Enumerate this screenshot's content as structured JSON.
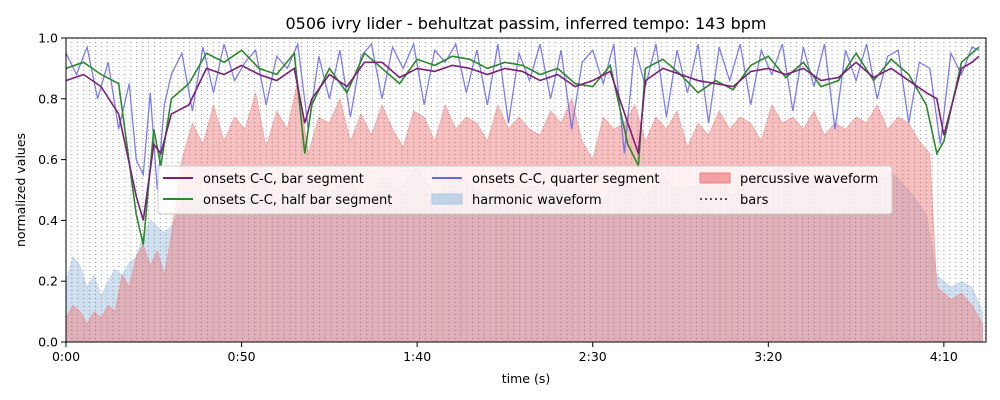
{
  "chart_data": {
    "type": "line",
    "title": "0506 ivry lider - behultzat passim, inferred tempo: 143 bpm",
    "xlabel": "time (s)",
    "ylabel": "normalized values",
    "xlim": [
      0,
      262
    ],
    "ylim": [
      0.0,
      1.0
    ],
    "xticks": [
      0,
      50,
      100,
      150,
      200,
      250
    ],
    "xtick_labels": [
      "0:00",
      "0:50",
      "1:40",
      "2:30",
      "3:20",
      "4:10"
    ],
    "yticks": [
      0.0,
      0.2,
      0.4,
      0.6,
      0.8,
      1.0
    ],
    "ytick_labels": [
      "0.0",
      "0.2",
      "0.4",
      "0.6",
      "0.8",
      "1.0"
    ],
    "legend_position": "center",
    "legend": [
      {
        "label": "onsets C-C, bar segment",
        "color": "#7b1f7b",
        "kind": "line"
      },
      {
        "label": "onsets C-C, half bar segment",
        "color": "#2a8a2a",
        "kind": "line"
      },
      {
        "label": "onsets C-C, quarter segment",
        "color": "#6666ee",
        "kind": "line"
      },
      {
        "label": "harmonic waveform",
        "color": "#a9c7e3",
        "kind": "patch"
      },
      {
        "label": "percussive waveform",
        "color": "#f08080",
        "kind": "patch"
      },
      {
        "label": "bars",
        "color": "#555555",
        "kind": "dotted"
      }
    ],
    "bar_line_period_s": 1.678,
    "series": [
      {
        "name": "onsets C-C, bar segment",
        "color": "#7b1f7b",
        "x": [
          0,
          5,
          10,
          15,
          20,
          22,
          25,
          27,
          30,
          35,
          40,
          45,
          50,
          55,
          60,
          65,
          68,
          70,
          75,
          80,
          85,
          90,
          95,
          100,
          105,
          110,
          115,
          120,
          125,
          130,
          135,
          140,
          145,
          150,
          155,
          160,
          163,
          165,
          170,
          175,
          180,
          185,
          190,
          195,
          200,
          205,
          210,
          215,
          220,
          225,
          230,
          235,
          240,
          245,
          248,
          250,
          255,
          258,
          260
        ],
        "values": [
          0.86,
          0.88,
          0.84,
          0.75,
          0.48,
          0.4,
          0.65,
          0.62,
          0.75,
          0.78,
          0.9,
          0.88,
          0.91,
          0.88,
          0.86,
          0.9,
          0.72,
          0.8,
          0.88,
          0.84,
          0.92,
          0.92,
          0.87,
          0.9,
          0.89,
          0.91,
          0.9,
          0.88,
          0.9,
          0.89,
          0.86,
          0.88,
          0.84,
          0.86,
          0.89,
          0.72,
          0.62,
          0.86,
          0.9,
          0.88,
          0.86,
          0.85,
          0.84,
          0.89,
          0.9,
          0.88,
          0.9,
          0.86,
          0.87,
          0.92,
          0.87,
          0.9,
          0.86,
          0.82,
          0.8,
          0.68,
          0.9,
          0.92,
          0.94
        ]
      },
      {
        "name": "onsets C-C, half bar segment",
        "color": "#2a8a2a",
        "x": [
          0,
          5,
          10,
          15,
          20,
          22,
          25,
          27,
          30,
          35,
          40,
          45,
          50,
          55,
          60,
          65,
          68,
          70,
          75,
          80,
          85,
          90,
          95,
          100,
          105,
          110,
          115,
          120,
          125,
          130,
          135,
          140,
          145,
          150,
          155,
          160,
          163,
          165,
          170,
          175,
          180,
          185,
          190,
          195,
          200,
          205,
          210,
          215,
          220,
          225,
          230,
          235,
          240,
          245,
          248,
          250,
          255,
          258,
          260
        ],
        "values": [
          0.9,
          0.92,
          0.88,
          0.85,
          0.42,
          0.32,
          0.7,
          0.58,
          0.8,
          0.85,
          0.95,
          0.92,
          0.96,
          0.9,
          0.88,
          0.95,
          0.62,
          0.78,
          0.9,
          0.82,
          0.95,
          0.9,
          0.85,
          0.93,
          0.91,
          0.94,
          0.93,
          0.9,
          0.92,
          0.91,
          0.88,
          0.9,
          0.85,
          0.84,
          0.91,
          0.65,
          0.58,
          0.9,
          0.93,
          0.88,
          0.82,
          0.86,
          0.83,
          0.91,
          0.94,
          0.87,
          0.92,
          0.84,
          0.86,
          0.95,
          0.86,
          0.93,
          0.88,
          0.78,
          0.62,
          0.66,
          0.92,
          0.95,
          0.97
        ]
      },
      {
        "name": "onsets C-C, quarter segment",
        "color": "#6666ee",
        "x": [
          0,
          3,
          6,
          9,
          12,
          15,
          18,
          20,
          22,
          24,
          26,
          28,
          30,
          33,
          36,
          39,
          42,
          45,
          48,
          51,
          54,
          57,
          60,
          63,
          66,
          69,
          72,
          75,
          78,
          81,
          84,
          87,
          90,
          93,
          96,
          99,
          102,
          105,
          108,
          111,
          114,
          117,
          120,
          123,
          126,
          129,
          132,
          135,
          138,
          141,
          144,
          147,
          150,
          153,
          156,
          159,
          162,
          165,
          168,
          171,
          174,
          177,
          180,
          183,
          186,
          189,
          192,
          195,
          198,
          201,
          204,
          207,
          210,
          213,
          216,
          219,
          222,
          225,
          228,
          231,
          234,
          237,
          240,
          243,
          246,
          249,
          252,
          255,
          258,
          260
        ],
        "values": [
          0.95,
          0.88,
          0.97,
          0.8,
          0.92,
          0.7,
          0.85,
          0.6,
          0.55,
          0.82,
          0.5,
          0.78,
          0.88,
          0.95,
          0.76,
          0.97,
          0.82,
          0.98,
          0.86,
          0.92,
          0.96,
          0.78,
          0.94,
          0.9,
          0.98,
          0.7,
          0.94,
          0.8,
          0.96,
          0.74,
          0.94,
          0.98,
          0.8,
          0.97,
          0.9,
          0.98,
          0.78,
          0.96,
          0.92,
          0.98,
          0.82,
          0.96,
          0.78,
          0.98,
          0.72,
          0.95,
          0.86,
          0.98,
          0.8,
          0.96,
          0.7,
          0.92,
          0.96,
          0.85,
          0.98,
          0.62,
          0.97,
          0.84,
          0.98,
          0.74,
          0.96,
          0.82,
          0.98,
          0.72,
          0.97,
          0.86,
          0.98,
          0.78,
          0.96,
          0.88,
          0.98,
          0.76,
          0.97,
          0.84,
          0.98,
          0.7,
          0.96,
          0.86,
          0.98,
          0.8,
          0.94,
          0.96,
          0.72,
          0.92,
          0.9,
          0.65,
          0.95,
          0.88,
          0.97,
          0.96
        ]
      }
    ],
    "waveforms": [
      {
        "name": "harmonic waveform",
        "color": "#a9c7e3",
        "x": [
          0,
          2,
          4,
          6,
          8,
          10,
          12,
          14,
          16,
          18,
          20,
          22,
          24,
          26,
          28,
          30,
          35,
          40,
          45,
          50,
          55,
          60,
          65,
          70,
          75,
          80,
          85,
          90,
          95,
          100,
          105,
          110,
          115,
          120,
          125,
          130,
          135,
          140,
          145,
          150,
          155,
          160,
          165,
          170,
          175,
          180,
          185,
          190,
          195,
          200,
          205,
          210,
          215,
          220,
          225,
          230,
          235,
          240,
          245,
          248,
          250,
          252,
          255,
          258,
          261
        ],
        "values": [
          0.2,
          0.28,
          0.25,
          0.18,
          0.22,
          0.15,
          0.2,
          0.24,
          0.22,
          0.26,
          0.28,
          0.35,
          0.4,
          0.38,
          0.36,
          0.38,
          0.5,
          0.45,
          0.55,
          0.42,
          0.58,
          0.46,
          0.52,
          0.55,
          0.48,
          0.56,
          0.45,
          0.54,
          0.5,
          0.58,
          0.48,
          0.55,
          0.52,
          0.46,
          0.55,
          0.5,
          0.52,
          0.48,
          0.55,
          0.42,
          0.5,
          0.54,
          0.48,
          0.55,
          0.5,
          0.52,
          0.55,
          0.48,
          0.54,
          0.56,
          0.58,
          0.52,
          0.55,
          0.5,
          0.54,
          0.52,
          0.56,
          0.5,
          0.42,
          0.22,
          0.2,
          0.18,
          0.2,
          0.18,
          0.1
        ]
      },
      {
        "name": "percussive waveform",
        "color": "#f08080",
        "x": [
          0,
          2,
          4,
          6,
          8,
          10,
          12,
          14,
          16,
          18,
          20,
          22,
          24,
          26,
          28,
          30,
          33,
          36,
          39,
          42,
          45,
          48,
          51,
          54,
          57,
          60,
          63,
          66,
          69,
          72,
          75,
          78,
          81,
          84,
          87,
          90,
          93,
          96,
          99,
          102,
          105,
          108,
          111,
          114,
          117,
          120,
          123,
          126,
          129,
          132,
          135,
          138,
          141,
          144,
          147,
          150,
          153,
          156,
          159,
          162,
          165,
          168,
          171,
          174,
          177,
          180,
          183,
          186,
          189,
          192,
          195,
          198,
          201,
          204,
          207,
          210,
          213,
          216,
          219,
          222,
          225,
          228,
          231,
          234,
          237,
          240,
          243,
          246,
          248,
          250,
          252,
          255,
          258,
          261
        ],
        "values": [
          0.08,
          0.12,
          0.1,
          0.06,
          0.1,
          0.08,
          0.12,
          0.1,
          0.22,
          0.18,
          0.28,
          0.32,
          0.25,
          0.3,
          0.22,
          0.35,
          0.6,
          0.72,
          0.65,
          0.78,
          0.66,
          0.74,
          0.7,
          0.82,
          0.64,
          0.76,
          0.7,
          0.86,
          0.62,
          0.74,
          0.72,
          0.8,
          0.66,
          0.75,
          0.68,
          0.78,
          0.7,
          0.64,
          0.76,
          0.74,
          0.66,
          0.78,
          0.7,
          0.74,
          0.72,
          0.66,
          0.78,
          0.7,
          0.74,
          0.7,
          0.68,
          0.76,
          0.72,
          0.8,
          0.66,
          0.6,
          0.74,
          0.7,
          0.72,
          0.78,
          0.66,
          0.74,
          0.7,
          0.76,
          0.64,
          0.72,
          0.68,
          0.76,
          0.7,
          0.74,
          0.72,
          0.66,
          0.78,
          0.72,
          0.74,
          0.7,
          0.76,
          0.68,
          0.72,
          0.7,
          0.74,
          0.72,
          0.78,
          0.7,
          0.74,
          0.72,
          0.66,
          0.62,
          0.18,
          0.16,
          0.14,
          0.16,
          0.12,
          0.06
        ]
      }
    ]
  }
}
